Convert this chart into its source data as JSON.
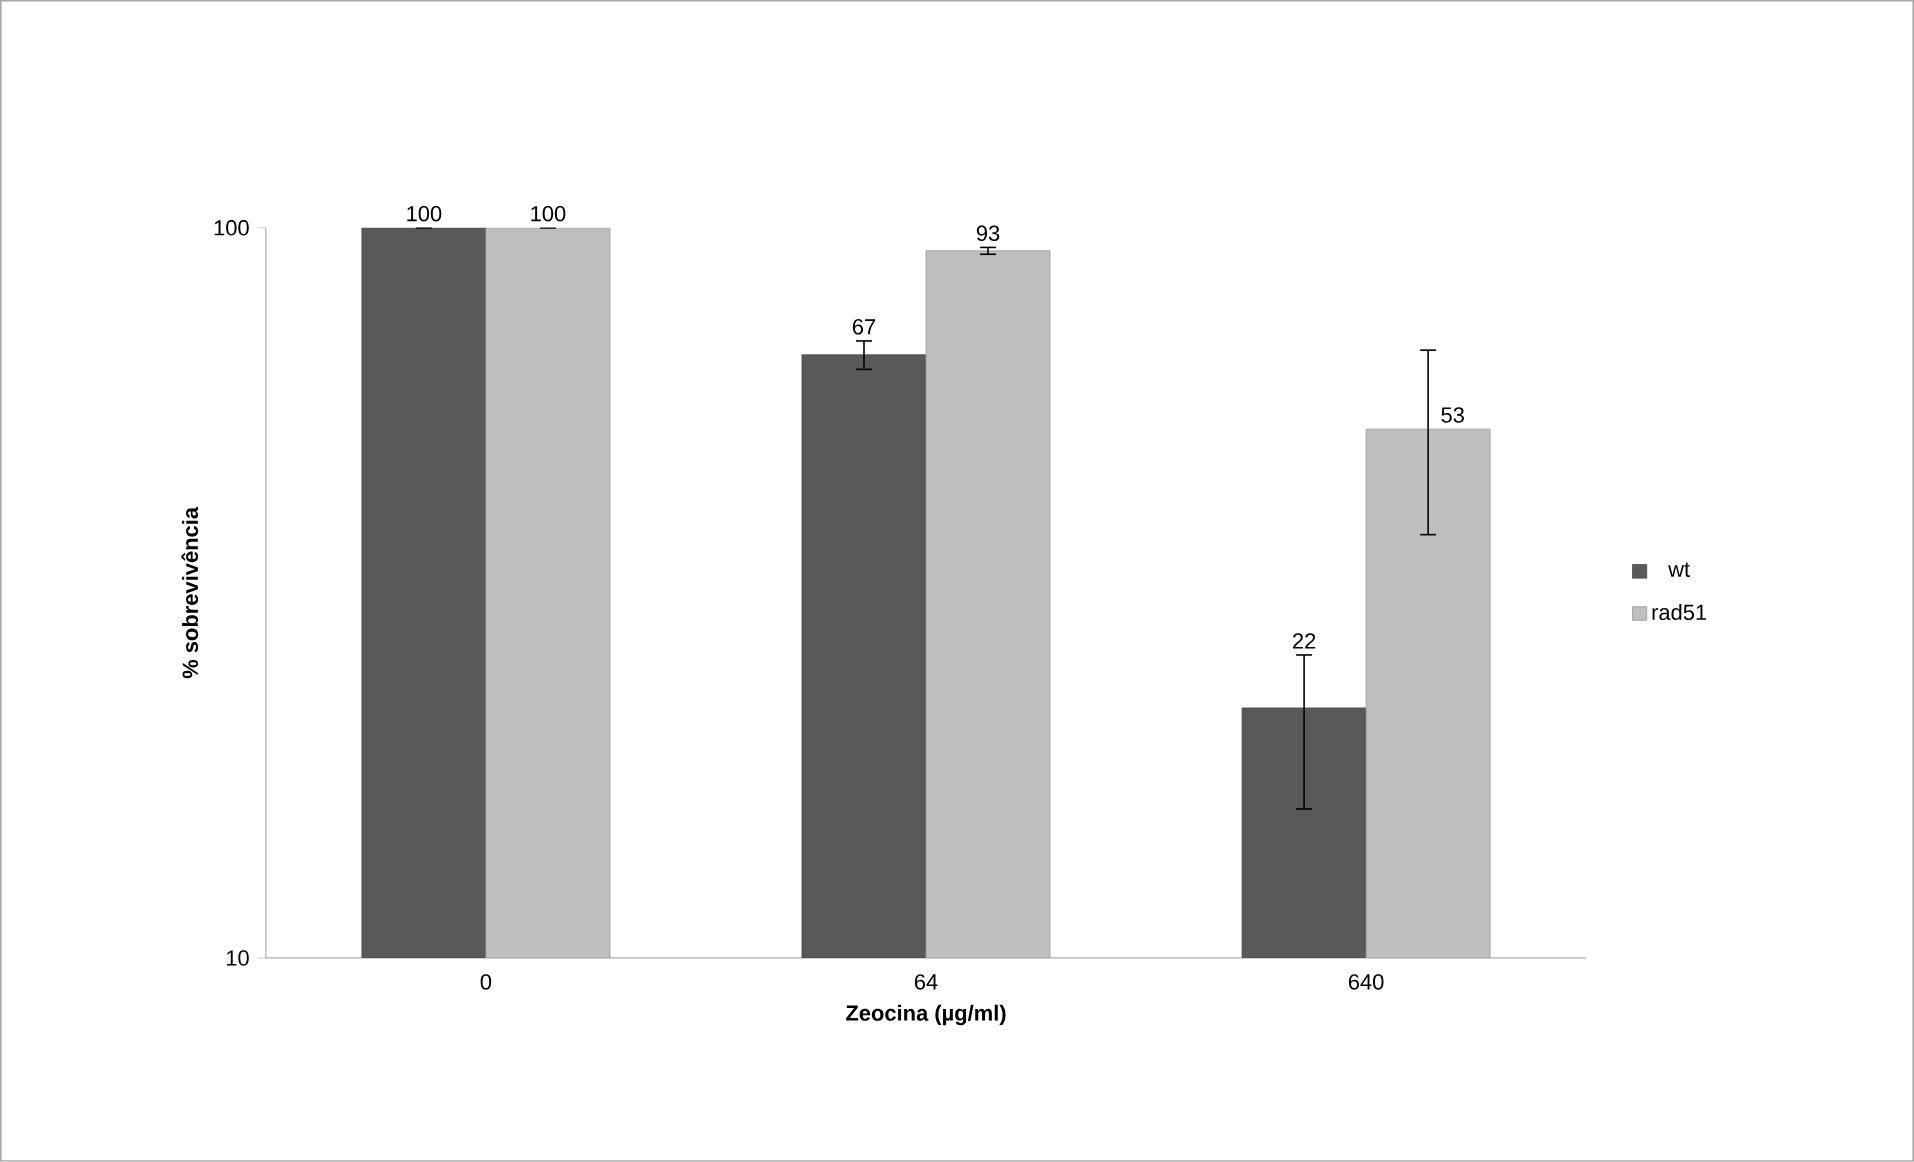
{
  "chart_data": {
    "type": "bar",
    "xlabel": "Zeocina (µg/ml)",
    "ylabel": "% sobrevivência",
    "categories": [
      "0",
      "64",
      "640"
    ],
    "series": [
      {
        "name": "wt",
        "color": "#595959",
        "values": [
          100,
          67,
          22
        ],
        "errors": [
          0,
          3,
          [
            16,
            26
          ]
        ]
      },
      {
        "name": "rad51",
        "color": "#bfbfbf",
        "values": [
          100,
          93,
          53
        ],
        "errors": [
          0,
          1,
          [
            38,
            68
          ]
        ]
      }
    ],
    "log": true,
    "ylim": [
      10,
      100
    ],
    "yticks": [
      10,
      100
    ],
    "data_labels": true,
    "legend": "right",
    "grid": false
  }
}
